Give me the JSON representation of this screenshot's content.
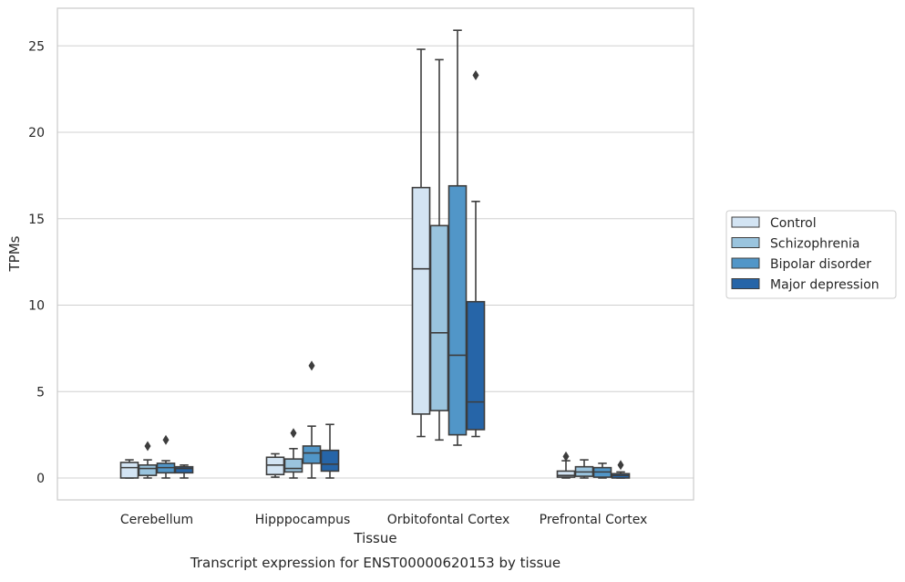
{
  "chart_data": {
    "type": "box",
    "title": "",
    "caption": "Transcript expression for ENST00000620153 by tissue",
    "xlabel": "Tissue",
    "ylabel": "TPMs",
    "ylim": [
      -1.2,
      27
    ],
    "yticks": [
      0,
      5,
      10,
      15,
      20,
      25
    ],
    "grid": "horizontal",
    "legend_position": "right",
    "categories": [
      "Cerebellum",
      "Hipppocampus",
      "Orbitofontal Cortex",
      "Prefrontal Cortex"
    ],
    "series": [
      {
        "name": "Control",
        "color": "#d3e4f3",
        "boxes": [
          {
            "whisker_low": 0,
            "q1": 0,
            "median": 0.6,
            "q3": 0.9,
            "whisker_high": 1.05,
            "outliers": []
          },
          {
            "whisker_low": 0.05,
            "q1": 0.2,
            "median": 0.75,
            "q3": 1.2,
            "whisker_high": 1.4,
            "outliers": []
          },
          {
            "whisker_low": 2.4,
            "q1": 3.7,
            "median": 12.1,
            "q3": 16.8,
            "whisker_high": 24.8,
            "outliers": []
          },
          {
            "whisker_low": 0,
            "q1": 0.05,
            "median": 0.15,
            "q3": 0.4,
            "whisker_high": 1.0,
            "outliers": [
              1.25
            ]
          }
        ]
      },
      {
        "name": "Schizophrenia",
        "color": "#9ac4de",
        "boxes": [
          {
            "whisker_low": 0,
            "q1": 0.15,
            "median": 0.55,
            "q3": 0.75,
            "whisker_high": 1.05,
            "outliers": [
              1.85
            ]
          },
          {
            "whisker_low": 0,
            "q1": 0.35,
            "median": 0.55,
            "q3": 1.1,
            "whisker_high": 1.7,
            "outliers": [
              2.6
            ]
          },
          {
            "whisker_low": 2.2,
            "q1": 3.9,
            "median": 8.4,
            "q3": 14.6,
            "whisker_high": 24.2,
            "outliers": []
          },
          {
            "whisker_low": 0,
            "q1": 0.1,
            "median": 0.35,
            "q3": 0.65,
            "whisker_high": 1.05,
            "outliers": []
          }
        ]
      },
      {
        "name": "Bipolar disorder",
        "color": "#5196c8",
        "boxes": [
          {
            "whisker_low": 0,
            "q1": 0.3,
            "median": 0.6,
            "q3": 0.85,
            "whisker_high": 1.0,
            "outliers": [
              2.2
            ]
          },
          {
            "whisker_low": 0,
            "q1": 0.85,
            "median": 1.45,
            "q3": 1.85,
            "whisker_high": 3.0,
            "outliers": [
              6.5
            ]
          },
          {
            "whisker_low": 1.9,
            "q1": 2.5,
            "median": 7.1,
            "q3": 16.9,
            "whisker_high": 25.9,
            "outliers": []
          },
          {
            "whisker_low": 0,
            "q1": 0.05,
            "median": 0.35,
            "q3": 0.6,
            "whisker_high": 0.85,
            "outliers": []
          }
        ]
      },
      {
        "name": "Major depression",
        "color": "#2665a8",
        "boxes": [
          {
            "whisker_low": 0,
            "q1": 0.3,
            "median": 0.55,
            "q3": 0.65,
            "whisker_high": 0.75,
            "outliers": []
          },
          {
            "whisker_low": 0,
            "q1": 0.4,
            "median": 0.8,
            "q3": 1.6,
            "whisker_high": 3.1,
            "outliers": []
          },
          {
            "whisker_low": 2.4,
            "q1": 2.8,
            "median": 4.4,
            "q3": 10.2,
            "whisker_high": 16.0,
            "outliers": [
              23.3
            ]
          },
          {
            "whisker_low": 0,
            "q1": 0,
            "median": 0.15,
            "q3": 0.25,
            "whisker_high": 0.35,
            "outliers": [
              0.75
            ]
          }
        ]
      }
    ]
  }
}
